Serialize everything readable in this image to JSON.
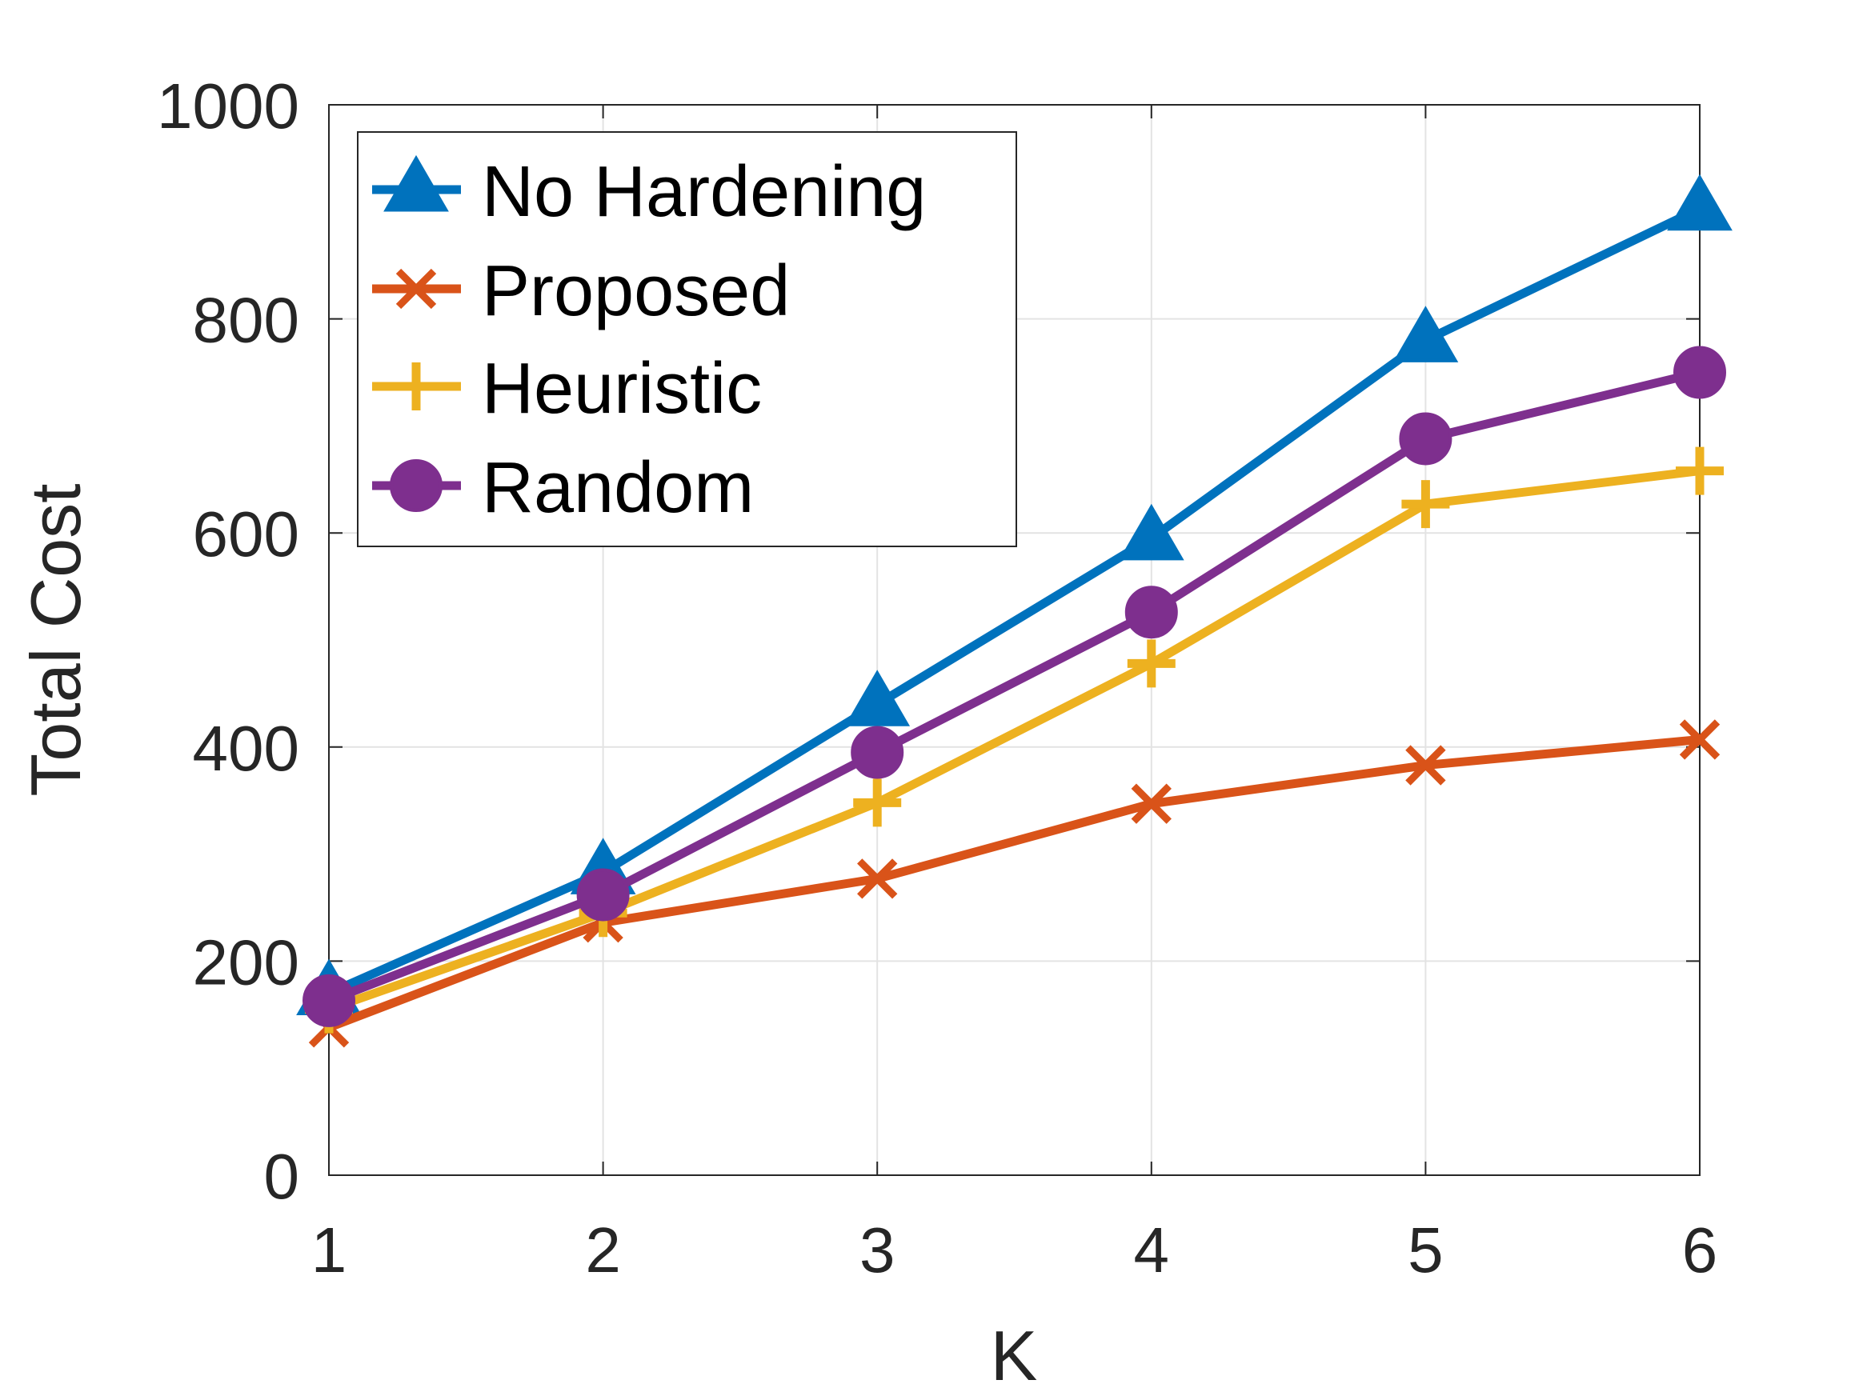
{
  "chart_data": {
    "type": "line",
    "xlabel": "K",
    "ylabel": "Total Cost",
    "x": [
      1,
      2,
      3,
      4,
      5,
      6
    ],
    "xlim": [
      1,
      6
    ],
    "ylim": [
      0,
      1000
    ],
    "xticks": [
      "1",
      "2",
      "3",
      "4",
      "5",
      "6"
    ],
    "yticks": [
      "0",
      "200",
      "400",
      "600",
      "800",
      "1000"
    ],
    "grid": true,
    "legend_position": "top-left",
    "series": [
      {
        "name": "No Hardening",
        "values": [
          170,
          283,
          440,
          595,
          780,
          903
        ],
        "color": "#0072BD",
        "marker": "triangle"
      },
      {
        "name": "Proposed",
        "values": [
          138,
          236,
          277,
          347,
          383,
          407
        ],
        "color": "#D95319",
        "marker": "x"
      },
      {
        "name": "Heuristic",
        "values": [
          155,
          245,
          348,
          478,
          627,
          658
        ],
        "color": "#EDB120",
        "marker": "plus"
      },
      {
        "name": "Random",
        "values": [
          163,
          262,
          395,
          526,
          688,
          750
        ],
        "color": "#7E2F8E",
        "marker": "circle"
      }
    ]
  }
}
